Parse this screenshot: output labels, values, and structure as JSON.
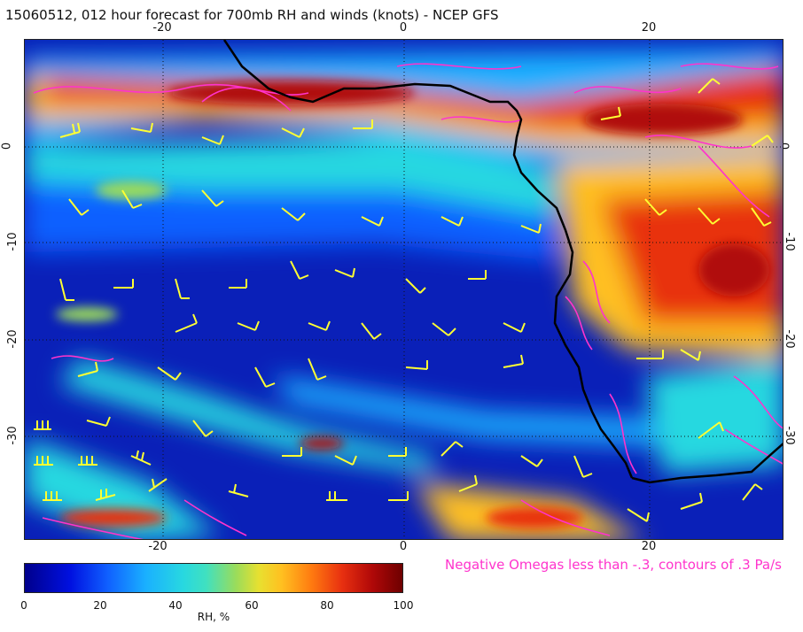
{
  "title": "15060512, 012 hour forecast for 700mb RH and winds (knots) - NCEP GFS",
  "axes": {
    "x_ticks": [
      "-20",
      "0",
      "20"
    ],
    "y_ticks": [
      "0",
      "-10",
      "-20",
      "-30"
    ]
  },
  "colorbar": {
    "ticks": [
      "0",
      "20",
      "40",
      "60",
      "80",
      "100"
    ],
    "unit_label": "RH, %"
  },
  "annotation": "Negative Omegas less than -.3, contours of .3 Pa/s",
  "colors": {
    "wind_barbs": "#ffff33",
    "omega_contours": "#ff33cc",
    "coastline": "#000000",
    "rh_low": "#00008c",
    "rh_high": "#6e0000"
  }
}
